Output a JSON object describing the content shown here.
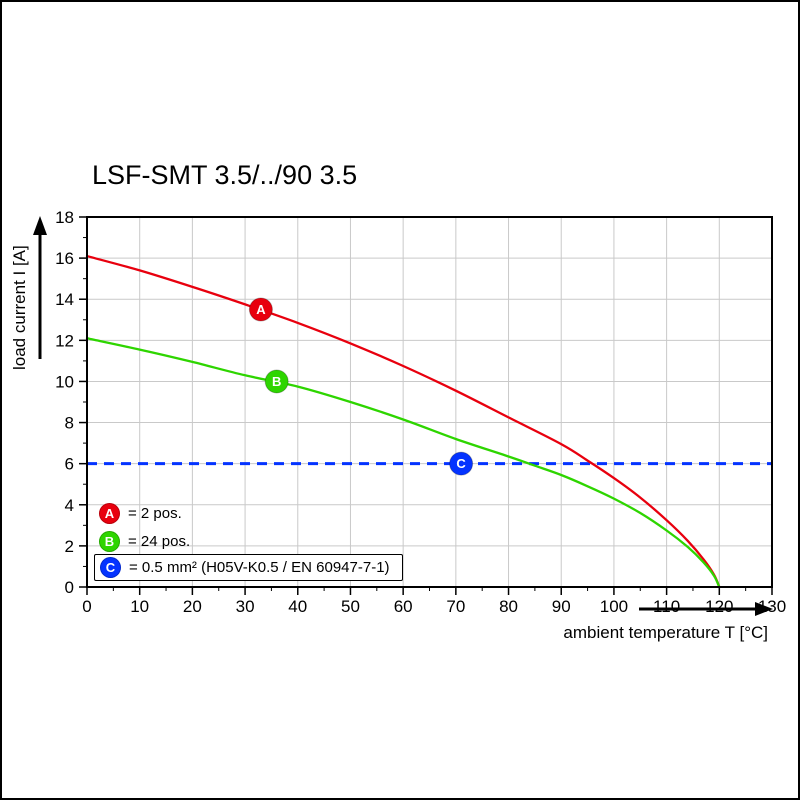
{
  "chart_data": {
    "type": "line",
    "title": "LSF-SMT 3.5/../90 3.5",
    "xlabel": "ambient temperature T [°C]",
    "ylabel": "load current I [A]",
    "xlim": [
      0,
      130
    ],
    "ylim": [
      0,
      18
    ],
    "x_ticks": [
      0,
      10,
      20,
      30,
      40,
      50,
      60,
      70,
      80,
      90,
      100,
      110,
      120,
      130
    ],
    "y_ticks": [
      0,
      2,
      4,
      6,
      8,
      10,
      12,
      14,
      16,
      18
    ],
    "grid": true,
    "grid_color": "#c9c9c9",
    "axis_color": "#000000",
    "series": [
      {
        "name": "A",
        "label": "= 2 pos.",
        "color": "#e8000e",
        "points": [
          [
            0,
            16.1
          ],
          [
            10,
            15.4
          ],
          [
            20,
            14.6
          ],
          [
            30,
            13.75
          ],
          [
            40,
            12.85
          ],
          [
            50,
            11.85
          ],
          [
            60,
            10.75
          ],
          [
            70,
            9.55
          ],
          [
            80,
            8.25
          ],
          [
            90,
            6.95
          ],
          [
            95,
            6.15
          ],
          [
            100,
            5.3
          ],
          [
            105,
            4.35
          ],
          [
            110,
            3.25
          ],
          [
            114,
            2.25
          ],
          [
            117,
            1.35
          ],
          [
            119,
            0.6
          ],
          [
            120,
            0
          ]
        ],
        "marker": {
          "x": 33,
          "y": 13.5,
          "letter": "A"
        }
      },
      {
        "name": "B",
        "label": "= 24 pos.",
        "color": "#2ed500",
        "points": [
          [
            0,
            12.1
          ],
          [
            10,
            11.55
          ],
          [
            20,
            10.95
          ],
          [
            30,
            10.3
          ],
          [
            40,
            9.75
          ],
          [
            50,
            9.0
          ],
          [
            60,
            8.15
          ],
          [
            70,
            7.2
          ],
          [
            80,
            6.35
          ],
          [
            85,
            5.9
          ],
          [
            90,
            5.45
          ],
          [
            95,
            4.9
          ],
          [
            100,
            4.3
          ],
          [
            105,
            3.6
          ],
          [
            110,
            2.75
          ],
          [
            114,
            1.95
          ],
          [
            117,
            1.2
          ],
          [
            119,
            0.55
          ],
          [
            120,
            0
          ]
        ],
        "marker": {
          "x": 36,
          "y": 10,
          "letter": "B"
        }
      }
    ],
    "threshold": {
      "name": "C",
      "label": "= 0.5 mm² (H05V-K0.5 / EN 60947-7-1)",
      "color": "#0433ff",
      "y": 6,
      "style": "dashed",
      "marker": {
        "x": 71,
        "y": 6,
        "letter": "C"
      }
    },
    "legend": [
      {
        "letter": "A",
        "color": "#e8000e",
        "label": "= 2 pos.",
        "boxed": false
      },
      {
        "letter": "B",
        "color": "#2ed500",
        "label": "= 24 pos.",
        "boxed": false
      },
      {
        "letter": "C",
        "color": "#0433ff",
        "label": "= 0.5 mm² (H05V-K0.5 / EN 60947-7-1)",
        "boxed": true
      }
    ]
  }
}
